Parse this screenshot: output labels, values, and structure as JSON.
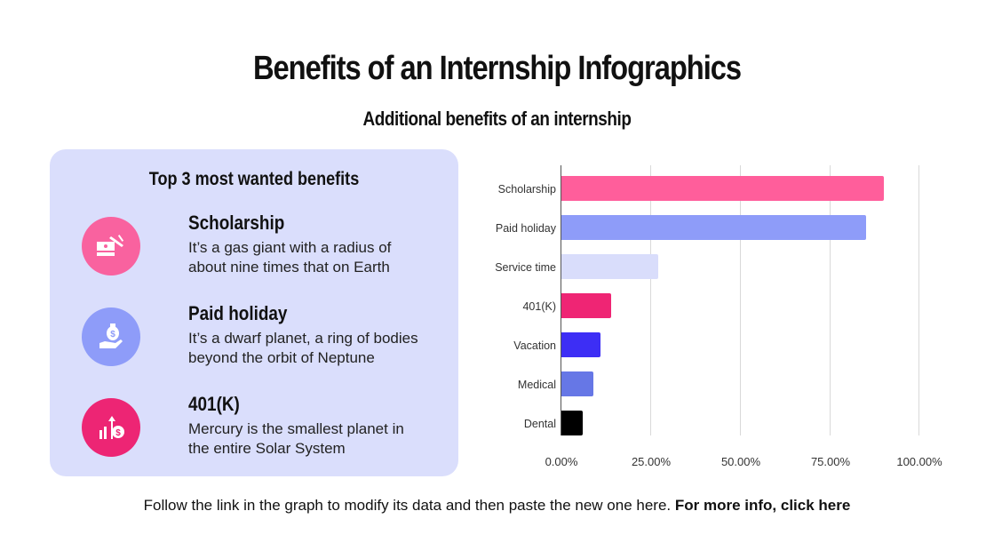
{
  "header": {
    "title": "Benefits of an Internship Infographics",
    "subtitle": "Additional benefits of an internship"
  },
  "panel": {
    "title": "Top 3 most wanted benefits",
    "items": [
      {
        "title": "Scholarship",
        "desc_line1": "It’s a gas giant with a radius of",
        "desc_line2": "about nine times that on Earth",
        "icon": "graduation-cap-icon",
        "color": "#f9629f"
      },
      {
        "title": "Paid holiday",
        "desc_line1": "It’s a dwarf planet, a ring of bodies",
        "desc_line2": "beyond the orbit of Neptune",
        "icon": "money-bag-hand-icon",
        "color": "#8e9cf9"
      },
      {
        "title": "401(K)",
        "desc_line1": "Mercury is the smallest planet in",
        "desc_line2": "the entire Solar System",
        "icon": "growth-dollar-icon",
        "color": "#ed2574"
      }
    ]
  },
  "chart_data": {
    "type": "bar",
    "orientation": "horizontal",
    "title": "",
    "xlabel": "",
    "ylabel": "",
    "categories": [
      "Scholarship",
      "Paid holiday",
      "Service time",
      "401(K)",
      "Vacation",
      "Medical",
      "Dental"
    ],
    "values": [
      90,
      85,
      27,
      14,
      11,
      9,
      6
    ],
    "colors": [
      "#ff5e9b",
      "#8e9cf9",
      "#d9ddfb",
      "#ef2574",
      "#3d2ef5",
      "#6677e6",
      "#000000"
    ],
    "xlim": [
      0,
      100
    ],
    "x_ticks": [
      "0.00%",
      "25.00%",
      "50.00%",
      "75.00%",
      "100.00%"
    ],
    "grid": true,
    "legend": "none"
  },
  "footer": {
    "text": "Follow the link in the graph to modify its data and then paste the new one here. ",
    "link_text": "For more info, click here"
  }
}
